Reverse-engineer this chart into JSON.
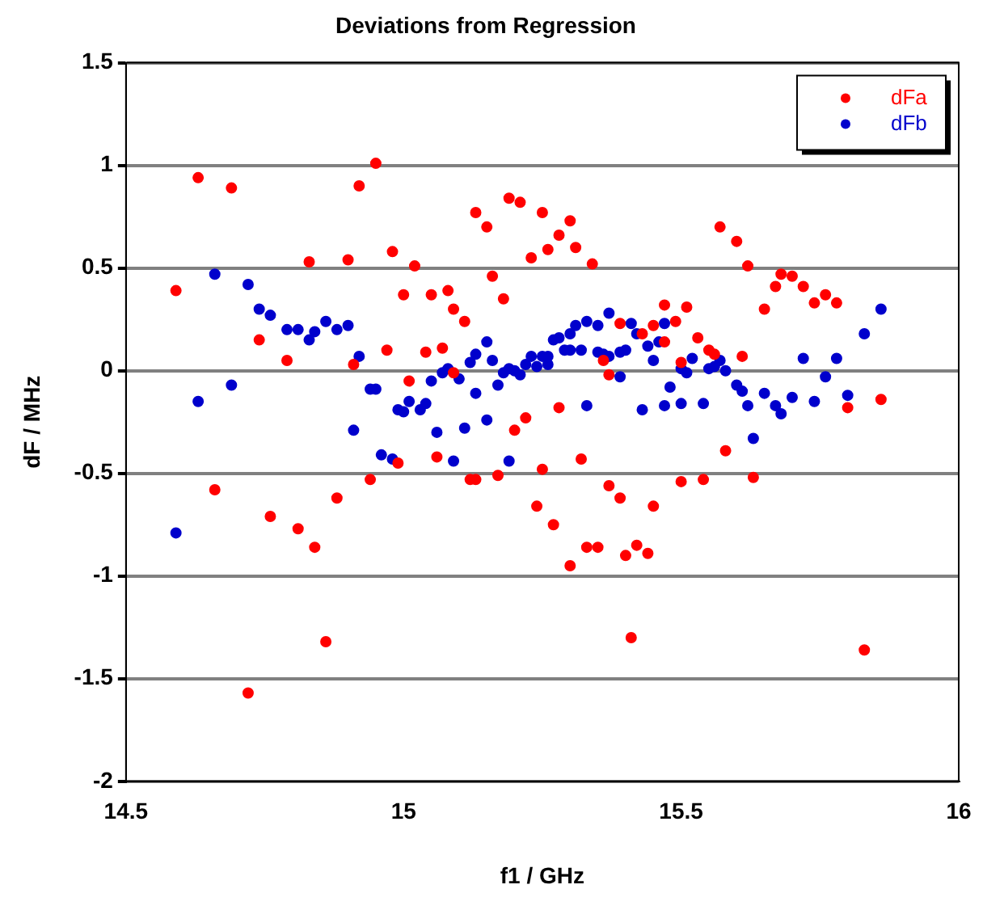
{
  "chart_data": {
    "type": "scatter",
    "title": "Deviations from Regression",
    "xlabel": "f1 / GHz",
    "ylabel": "dF / MHz",
    "xlim": [
      14.5,
      16
    ],
    "xticks": [
      14.5,
      15,
      15.5,
      16
    ],
    "ylim": [
      -2,
      1.5
    ],
    "yticks": [
      -2,
      -1.5,
      -1,
      -0.5,
      0,
      0.5,
      1,
      1.5
    ],
    "grid": "y",
    "legend": "top right",
    "marker": "circle",
    "series": [
      {
        "name": "dFa",
        "color": "#ff0000",
        "x": [
          14.59,
          14.63,
          14.66,
          14.69,
          14.72,
          14.74,
          14.76,
          14.79,
          14.81,
          14.83,
          14.84,
          14.86,
          14.88,
          14.9,
          14.91,
          14.92,
          14.94,
          14.95,
          14.97,
          14.98,
          14.99,
          15.0,
          15.01,
          15.02,
          15.04,
          15.05,
          15.06,
          15.07,
          15.08,
          15.09,
          15.09,
          15.11,
          15.12,
          15.13,
          15.13,
          15.15,
          15.16,
          15.17,
          15.18,
          15.19,
          15.2,
          15.21,
          15.22,
          15.23,
          15.24,
          15.25,
          15.25,
          15.26,
          15.27,
          15.28,
          15.28,
          15.3,
          15.3,
          15.31,
          15.32,
          15.33,
          15.34,
          15.35,
          15.36,
          15.37,
          15.37,
          15.39,
          15.39,
          15.4,
          15.41,
          15.42,
          15.43,
          15.44,
          15.45,
          15.45,
          15.47,
          15.47,
          15.49,
          15.5,
          15.5,
          15.51,
          15.53,
          15.54,
          15.55,
          15.56,
          15.57,
          15.58,
          15.6,
          15.61,
          15.62,
          15.63,
          15.65,
          15.67,
          15.68,
          15.7,
          15.72,
          15.74,
          15.76,
          15.78,
          15.8,
          15.83,
          15.86
        ],
        "values": [
          0.39,
          0.94,
          -0.58,
          0.89,
          -1.57,
          0.15,
          -0.71,
          0.05,
          -0.77,
          0.53,
          -0.86,
          -1.32,
          -0.62,
          0.54,
          0.03,
          0.9,
          -0.53,
          1.01,
          0.1,
          0.58,
          -0.45,
          0.37,
          -0.05,
          0.51,
          0.09,
          0.37,
          -0.42,
          0.11,
          0.39,
          0.3,
          -0.01,
          0.24,
          -0.53,
          0.77,
          -0.53,
          0.7,
          0.46,
          -0.51,
          0.35,
          0.84,
          -0.29,
          0.82,
          -0.23,
          0.55,
          -0.66,
          0.77,
          -0.48,
          0.59,
          -0.75,
          0.66,
          -0.18,
          0.73,
          -0.95,
          0.6,
          -0.43,
          -0.86,
          0.52,
          -0.86,
          0.05,
          -0.02,
          -0.56,
          0.23,
          -0.62,
          -0.9,
          -1.3,
          -0.85,
          0.18,
          -0.89,
          0.22,
          -0.66,
          0.32,
          0.14,
          0.24,
          0.04,
          -0.54,
          0.31,
          0.16,
          -0.53,
          0.1,
          0.08,
          0.7,
          -0.39,
          0.63,
          0.07,
          0.51,
          -0.52,
          0.3,
          0.41,
          0.47,
          0.46,
          0.41,
          0.33,
          0.37,
          0.33,
          -0.18,
          -1.36,
          -0.14
        ]
      },
      {
        "name": "dFb",
        "color": "#0000cc",
        "x": [
          14.59,
          14.63,
          14.66,
          14.69,
          14.72,
          14.74,
          14.76,
          14.79,
          14.81,
          14.83,
          14.84,
          14.86,
          14.88,
          14.9,
          14.91,
          14.92,
          14.94,
          14.95,
          14.96,
          14.98,
          14.99,
          15.0,
          15.01,
          15.03,
          15.04,
          15.05,
          15.06,
          15.07,
          15.08,
          15.09,
          15.1,
          15.11,
          15.12,
          15.13,
          15.13,
          15.15,
          15.15,
          15.16,
          15.17,
          15.18,
          15.19,
          15.19,
          15.2,
          15.21,
          15.22,
          15.23,
          15.24,
          15.25,
          15.26,
          15.26,
          15.27,
          15.28,
          15.29,
          15.3,
          15.3,
          15.31,
          15.32,
          15.33,
          15.33,
          15.35,
          15.35,
          15.36,
          15.37,
          15.37,
          15.39,
          15.39,
          15.4,
          15.41,
          15.42,
          15.43,
          15.44,
          15.45,
          15.46,
          15.47,
          15.47,
          15.48,
          15.5,
          15.5,
          15.51,
          15.52,
          15.54,
          15.55,
          15.56,
          15.57,
          15.58,
          15.6,
          15.61,
          15.62,
          15.63,
          15.65,
          15.67,
          15.68,
          15.7,
          15.72,
          15.74,
          15.76,
          15.78,
          15.8,
          15.83,
          15.86
        ],
        "values": [
          -0.79,
          -0.15,
          0.47,
          -0.07,
          0.42,
          0.3,
          0.27,
          0.2,
          0.2,
          0.15,
          0.19,
          0.24,
          0.2,
          0.22,
          -0.29,
          0.07,
          -0.09,
          -0.09,
          -0.41,
          -0.43,
          -0.19,
          -0.2,
          -0.15,
          -0.19,
          -0.16,
          -0.05,
          -0.3,
          -0.01,
          0.01,
          -0.44,
          -0.04,
          -0.28,
          0.04,
          0.08,
          -0.11,
          0.14,
          -0.24,
          0.05,
          -0.07,
          -0.01,
          0.01,
          -0.44,
          0.0,
          -0.02,
          0.03,
          0.07,
          0.02,
          0.07,
          0.03,
          0.07,
          0.15,
          0.16,
          0.1,
          0.18,
          0.1,
          0.22,
          0.1,
          0.24,
          -0.17,
          0.09,
          0.22,
          0.08,
          0.07,
          0.28,
          -0.03,
          0.09,
          0.1,
          0.23,
          0.18,
          -0.19,
          0.12,
          0.05,
          0.14,
          0.23,
          -0.17,
          -0.08,
          0.01,
          -0.16,
          -0.01,
          0.06,
          -0.16,
          0.01,
          0.02,
          0.05,
          0.0,
          -0.07,
          -0.1,
          -0.17,
          -0.33,
          -0.11,
          -0.17,
          -0.21,
          -0.13,
          0.06,
          -0.15,
          -0.03,
          0.06,
          -0.12,
          0.18,
          0.3
        ]
      }
    ]
  }
}
